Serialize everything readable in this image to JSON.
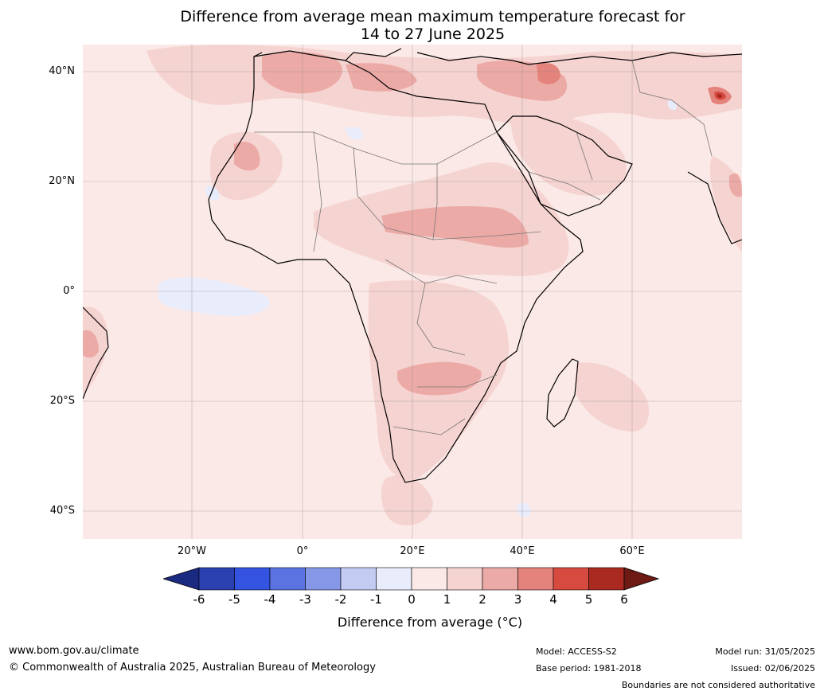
{
  "title": {
    "line1": "Difference from average mean maximum temperature forecast for",
    "line2": "14 to 27 June 2025"
  },
  "map": {
    "lat_labels": [
      "40°N",
      "20°N",
      "0°",
      "20°S",
      "40°S"
    ],
    "lon_labels": [
      "20°W",
      "0°",
      "20°E",
      "40°E",
      "60°E"
    ]
  },
  "colorbar": {
    "title": "Difference from average (°C)",
    "ticks": [
      "-6",
      "-5",
      "-4",
      "-3",
      "-2",
      "-1",
      "0",
      "1",
      "2",
      "3",
      "4",
      "5",
      "6"
    ],
    "colors": [
      "#1a2a80",
      "#2a3fb0",
      "#3453e0",
      "#5a73e0",
      "#8797e8",
      "#c3cbf3",
      "#e8ecfb",
      "#fbe9e7",
      "#f5d3d0",
      "#ecaaa6",
      "#e4827c",
      "#d64a40",
      "#aa2a22",
      "#6e1a14"
    ]
  },
  "footer": {
    "website": "www.bom.gov.au/climate",
    "copyright": "© Commonwealth of Australia 2025, Australian Bureau of Meteorology",
    "model": "Model: ACCESS-S2",
    "base_period": "Base period: 1981-2018",
    "model_run": "Model run: 31/05/2025",
    "issued": "Issued: 02/06/2025",
    "disclaimer": "Boundaries are not considered authoritative"
  }
}
